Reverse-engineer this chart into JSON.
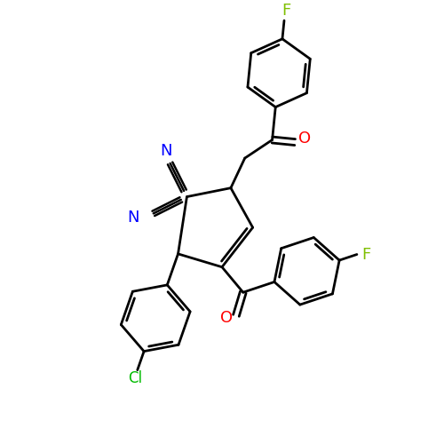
{
  "bg_color": "#ffffff",
  "bond_color": "#000000",
  "bond_width": 2.0,
  "F_color": "#7fbf00",
  "Cl_color": "#00bb00",
  "N_color": "#0000ff",
  "O_color": "#ff0000",
  "label_fontsize": 12,
  "figsize": [
    5.0,
    5.0
  ],
  "dpi": 100,
  "xlim": [
    0,
    10
  ],
  "ylim": [
    0,
    10
  ]
}
